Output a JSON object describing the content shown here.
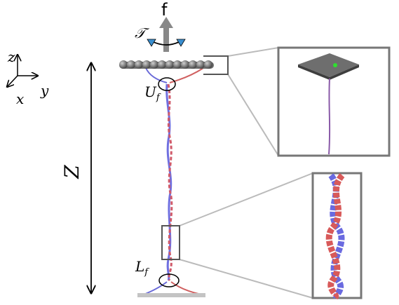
{
  "labels": {
    "force": "f",
    "torque": "𝒯",
    "axis_z": "z",
    "axis_x": "x",
    "axis_y": "y",
    "extension": "Z",
    "upper": {
      "text": "U",
      "sub": "f"
    },
    "lower": {
      "text": "L",
      "sub": "f"
    }
  }
}
